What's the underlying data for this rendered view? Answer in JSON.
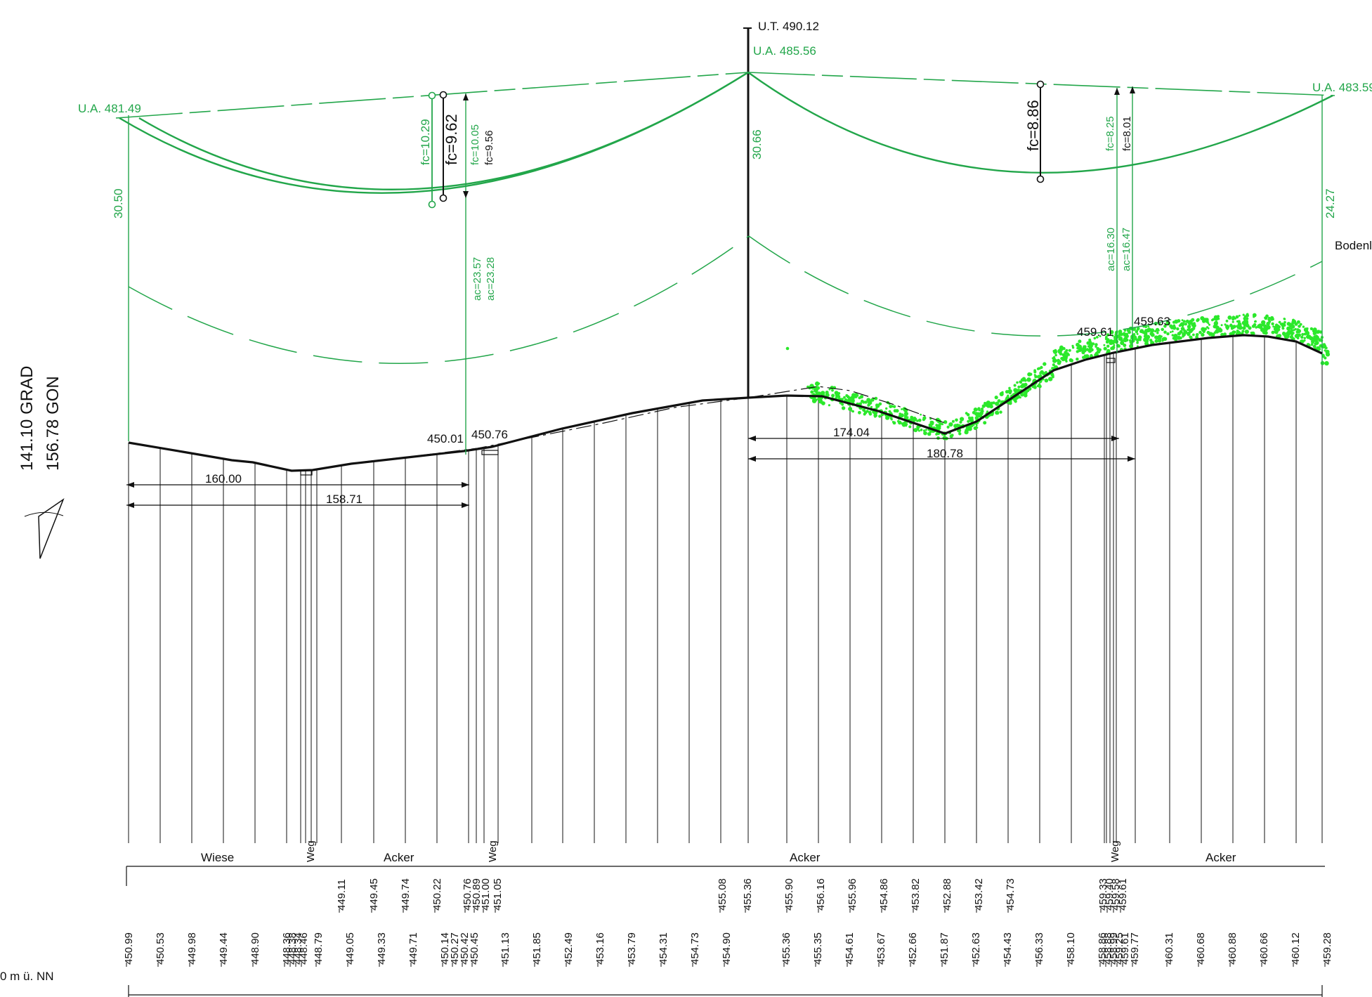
{
  "drawing": {
    "angle": {
      "grad": "141.10 GRAD",
      "gon": "156.78 GON"
    },
    "datum_label": "0 m ü. NN",
    "masts": {
      "left": "U.A. 481.49",
      "center_top": "U.T. 490.12",
      "center": "U.A. 485.56",
      "right": "U.A. 483.59"
    },
    "heights": {
      "left": "30.50",
      "center": "30.66",
      "right": "24.27"
    },
    "sag_labels": {
      "left_green": "fc=10.29",
      "left_black": "fc=9.62",
      "left_small_1": "fc=10.05",
      "left_small_2": "fc=9.56",
      "right_black": "fc=8.86",
      "right_small_1": "fc=8.25",
      "right_small_2": "fc=8.01"
    },
    "clearance_labels": {
      "left_1": "ac=23.57",
      "left_2": "ac=23.28",
      "right_1": "ac=16.30",
      "right_2": "ac=16.47"
    },
    "ground_labels": {
      "g1": "450.01",
      "g2": "450.76",
      "g3": "459.61",
      "g4": "459.63"
    },
    "distances": {
      "d1": "160.00",
      "d2": "158.71",
      "d3": "174.04",
      "d4": "180.78"
    },
    "side_label": "Bodenl",
    "land_use": {
      "wiese": "Wiese",
      "weg1": "Weg",
      "acker1": "Acker",
      "weg2": "Weg",
      "acker2": "Acker",
      "weg3": "Weg",
      "acker3": "Acker"
    },
    "upper_row": [
      "449.11",
      "449.45",
      "449.74",
      "450.22",
      "450.76",
      "450.89",
      "451.00",
      "451.05",
      "455.08",
      "455.36",
      "455.90",
      "456.16",
      "455.96",
      "454.86",
      "453.82",
      "452.88",
      "453.42",
      "454.73",
      "459.33",
      "459.40",
      "459.58",
      "459.61"
    ],
    "lower_row": [
      "450.99",
      "450.53",
      "449.98",
      "449.44",
      "448.90",
      "448.36",
      "448.38",
      "448.34",
      "448.46",
      "448.79",
      "449.05",
      "449.33",
      "449.71",
      "450.14",
      "450.27",
      "450.42",
      "450.45",
      "451.13",
      "451.85",
      "452.49",
      "453.16",
      "453.79",
      "454.31",
      "454.73",
      "454.90",
      "455.36",
      "455.35",
      "454.61",
      "453.67",
      "452.66",
      "451.87",
      "452.63",
      "454.43",
      "456.33",
      "458.10",
      "458.86",
      "458.88",
      "458.99",
      "459.25",
      "459.61",
      "459.77",
      "460.31",
      "460.68",
      "460.88",
      "460.66",
      "460.12",
      "459.28"
    ]
  },
  "colors": {
    "green": "#22a64a",
    "bright_green": "#2be82b",
    "black": "#111111"
  }
}
